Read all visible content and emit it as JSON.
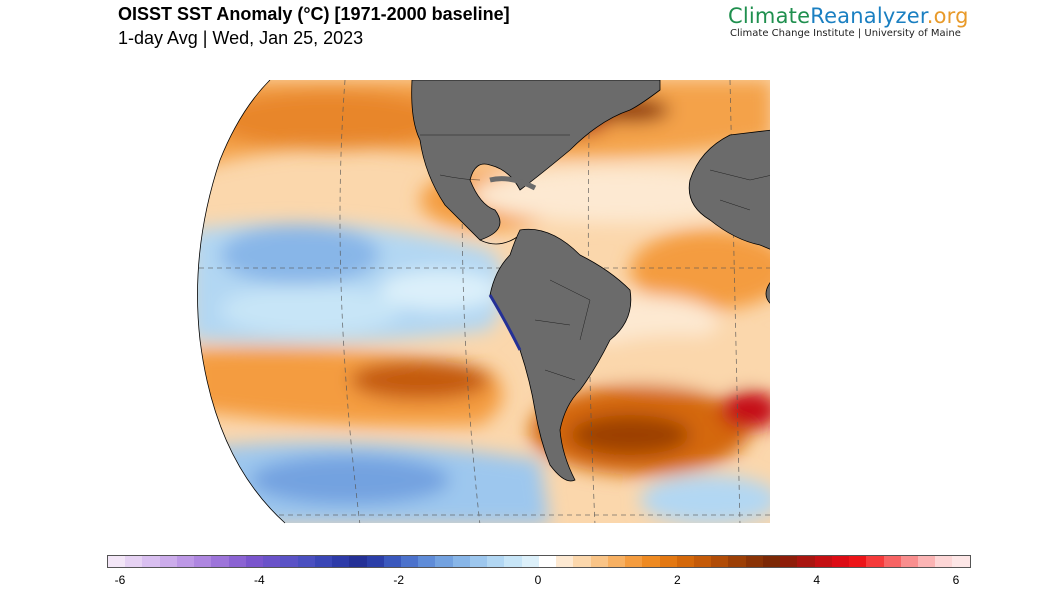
{
  "header": {
    "title": "OISST SST Anomaly (°C) [1971-2000 baseline]",
    "subtitle": "1-day Avg | Wed, Jan 25, 2023"
  },
  "branding": {
    "name_part1": "Climate",
    "name_part2": "Reanalyzer",
    "name_part3": ".org",
    "tagline": "Climate Change Institute | University of Maine"
  },
  "map": {
    "variable": "SST anomaly",
    "units": "°C",
    "land_color": "#6b6b6b",
    "ocean_features": [
      "warm anomaly band across South Atlantic (~35-45°S)",
      "cool anomaly band across equatorial Pacific (La Niña pattern)",
      "strong warm anomaly along Gulf Stream off US east coast",
      "cool anomaly along Peru/Chile coast",
      "cool anomaly across Southern Ocean"
    ]
  },
  "colorbar": {
    "min": -6,
    "max": 6,
    "tick_labels": [
      "-6",
      "-4",
      "-2",
      "0",
      "2",
      "4",
      "6"
    ],
    "colors": [
      "#f3e6f7",
      "#e6d2f3",
      "#d9bff0",
      "#ccaceb",
      "#bd98e6",
      "#ae86e0",
      "#9d74da",
      "#8b63d3",
      "#7a55cd",
      "#6a52c9",
      "#5a52c6",
      "#4a4fc0",
      "#3a46b6",
      "#2d3aa8",
      "#243096",
      "#2b3ea8",
      "#3a58bd",
      "#4c72cc",
      "#5f8cd8",
      "#73a2e0",
      "#88b6e8",
      "#9dc7ee",
      "#b2d7f3",
      "#c7e5f7",
      "#dcf0fa",
      "#ffffff",
      "#fde9d2",
      "#fbd7ac",
      "#f9c487",
      "#f7b062",
      "#f49c3f",
      "#ee8a22",
      "#e37812",
      "#d4680a",
      "#c45a08",
      "#b14c07",
      "#9c3f06",
      "#8a3306",
      "#7c2805",
      "#8e1d09",
      "#a9150f",
      "#c40f12",
      "#dc0b14",
      "#ec1418",
      "#f53a3a",
      "#f76464",
      "#f98e8e",
      "#fbb4b4",
      "#fdd6d6",
      "#fde6e6"
    ]
  }
}
